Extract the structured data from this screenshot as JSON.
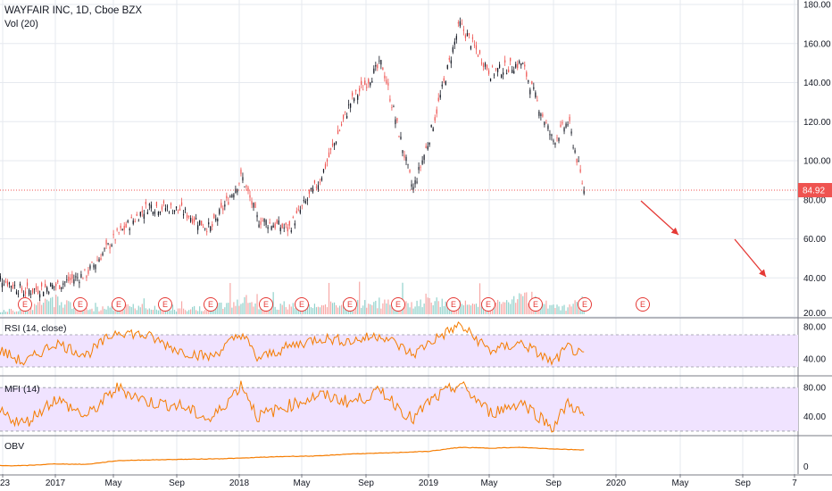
{
  "header": {
    "title": "WAYFAIR INC, 1D, Cboe BZX",
    "volume_label": "Vol (20)"
  },
  "panes": {
    "rsi_label": "RSI (14, close)",
    "mfi_label": "MFI (14)",
    "obv_label": "OBV"
  },
  "colors": {
    "up": "#26a69a",
    "down": "#ef5350",
    "indicator": "#f57c00",
    "band_fill": "#f0e3ff",
    "price_line": "#ef5350",
    "arrow": "#e53935"
  },
  "chart_data": [
    {
      "type": "candlestick",
      "title": "WAYFAIR INC, 1D, Cboe BZX",
      "x_axis_labels": [
        "23",
        "2017",
        "May",
        "Sep",
        "2018",
        "May",
        "Sep",
        "2019",
        "May",
        "Sep",
        "2020",
        "May",
        "Sep",
        "7"
      ],
      "y_axis_labels": [
        "180.00",
        "160.00",
        "140.00",
        "120.00",
        "100.00",
        "80.00",
        "60.00",
        "40.00",
        "20.00"
      ],
      "ylim": [
        20,
        180
      ],
      "last_price": 84.92,
      "last_price_label": "84.92",
      "x": [
        "2016-09",
        "2016-11",
        "2017-01",
        "2017-03",
        "2017-05",
        "2017-07",
        "2017-09",
        "2017-11",
        "2018-01",
        "2018-02",
        "2018-04",
        "2018-06",
        "2018-08",
        "2018-10",
        "2018-12",
        "2019-01",
        "2019-03",
        "2019-05",
        "2019-07",
        "2019-09",
        "2019-10",
        "2019-11"
      ],
      "close": [
        42,
        33,
        36,
        42,
        62,
        77,
        75,
        65,
        92,
        70,
        65,
        90,
        130,
        150,
        85,
        110,
        170,
        145,
        150,
        110,
        120,
        84.92
      ],
      "earnings_markers": [
        "E",
        "E",
        "E",
        "E",
        "E",
        "E",
        "E",
        "E",
        "E",
        "E",
        "E",
        "E",
        "E",
        "E"
      ],
      "grid": true
    },
    {
      "type": "bar",
      "name": "Vol (20)",
      "values": [
        0.2,
        0.3,
        0.9,
        0.3,
        0.4,
        0.5,
        0.3,
        0.4,
        1.0,
        0.4,
        0.6,
        0.5,
        0.6,
        0.7,
        0.5,
        0.8,
        0.6,
        0.5,
        1.0,
        0.5,
        0.4,
        0.9
      ]
    },
    {
      "type": "line",
      "name": "RSI (14, close)",
      "y_axis_labels": [
        "80.00",
        "40.00"
      ],
      "ylim": [
        20,
        90
      ],
      "band": [
        30,
        70
      ],
      "values": [
        55,
        35,
        60,
        45,
        75,
        68,
        50,
        42,
        72,
        40,
        55,
        66,
        62,
        70,
        45,
        60,
        82,
        50,
        60,
        35,
        55,
        42
      ]
    },
    {
      "type": "line",
      "name": "MFI (14)",
      "y_axis_labels": [
        "80.00",
        "40.00"
      ],
      "ylim": [
        15,
        95
      ],
      "band": [
        20,
        80
      ],
      "values": [
        50,
        30,
        65,
        40,
        80,
        60,
        55,
        35,
        85,
        40,
        55,
        70,
        60,
        75,
        35,
        60,
        85,
        45,
        60,
        25,
        60,
        40
      ]
    },
    {
      "type": "line",
      "name": "OBV",
      "y_axis_labels": [
        "0"
      ],
      "values": [
        0.05,
        0.05,
        0.12,
        0.1,
        0.25,
        0.28,
        0.3,
        0.32,
        0.35,
        0.38,
        0.42,
        0.44,
        0.52,
        0.55,
        0.6,
        0.62,
        0.78,
        0.75,
        0.78,
        0.72,
        0.7,
        0.68
      ]
    }
  ]
}
